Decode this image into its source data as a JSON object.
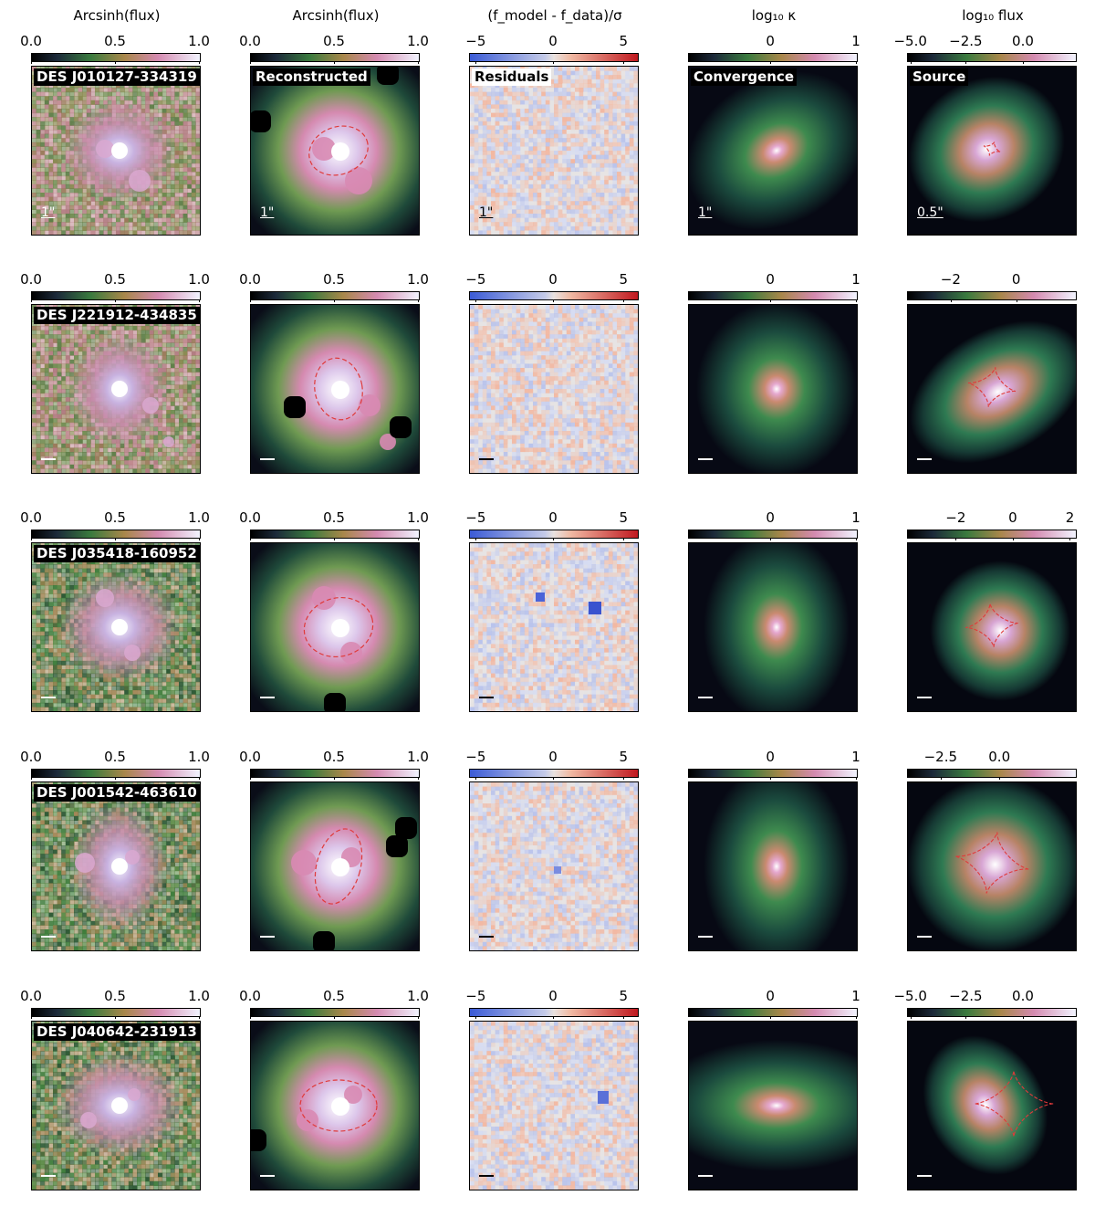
{
  "column_titles": [
    "Arcsinh(flux)",
    "Arcsinh(flux)",
    "(f_model - f_data)/σ",
    "log₁₀ κ",
    "log₁₀ flux"
  ],
  "panel_labels": {
    "reconstructed": "Reconstructed",
    "residuals": "Residuals",
    "convergence": "Convergence",
    "source": "Source"
  },
  "scale_labels": {
    "image": "1\"",
    "source": "0.5\""
  },
  "colorbars": {
    "data": [
      "0.0",
      "0.5",
      "1.0"
    ],
    "model": [
      "0.0",
      "0.5",
      "1.0"
    ],
    "residual": [
      "−5",
      "0",
      "5"
    ],
    "kappa": [
      "0",
      "1"
    ]
  },
  "rows": [
    {
      "name": "DES J010127-334319",
      "source_ticks": [
        "−5.0",
        "−2.5",
        "0.0"
      ]
    },
    {
      "name": "DES J221912-434835",
      "source_ticks": [
        "−2",
        "0"
      ]
    },
    {
      "name": "DES J035418-160952",
      "source_ticks": [
        "−2",
        "0",
        "2"
      ]
    },
    {
      "name": "DES J001542-463610",
      "source_ticks": [
        "−2.5",
        "0.0"
      ]
    },
    {
      "name": "DES J040642-231913",
      "source_ticks": [
        "−5.0",
        "−2.5",
        "0.0"
      ]
    }
  ],
  "colors": {
    "cubehelix_dark": "#000000",
    "cubehelix_green": "#3a7a3e",
    "cubehelix_pink": "#d48ab0",
    "cubehelix_white": "#f2f4ff",
    "residual_blue": "#3b5bd6",
    "residual_red": "#c0181f",
    "critical_curve": "#e03a3a"
  }
}
